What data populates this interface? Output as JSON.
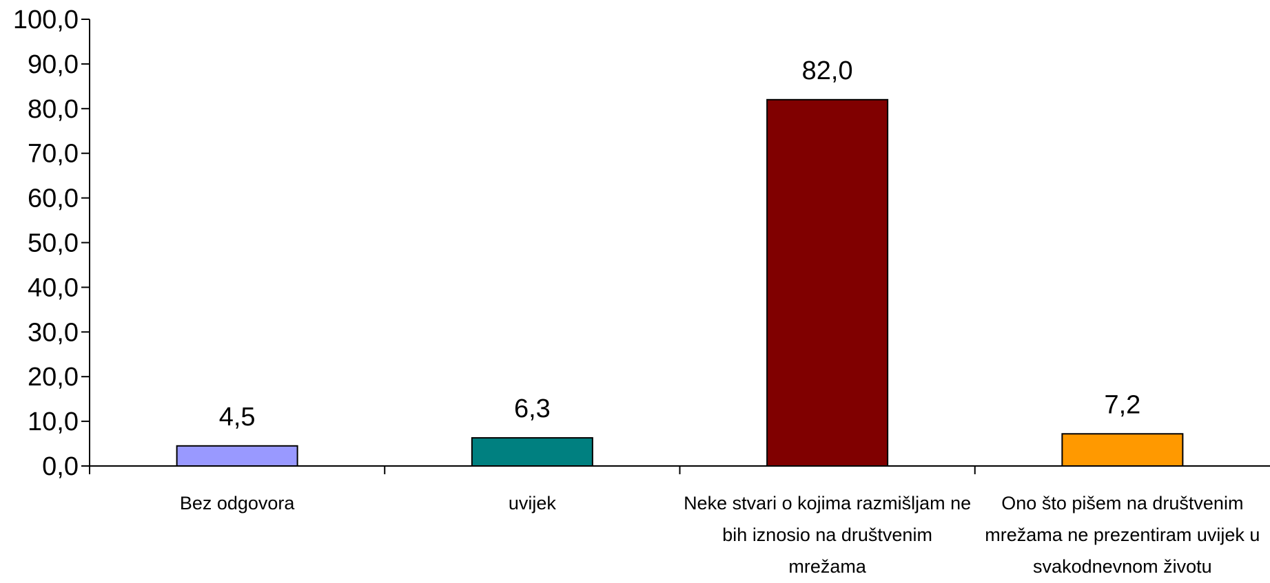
{
  "chart_data": {
    "type": "bar",
    "categories": [
      [
        "Bez odgovora"
      ],
      [
        "uvijek"
      ],
      [
        "Neke stvari o kojima razmišljam ne",
        "bih iznosio na društvenim",
        "mrežama"
      ],
      [
        "Ono što pišem na društvenim",
        "mrežama ne prezentiram uvijek u",
        "svakodnevnom životu"
      ]
    ],
    "values": [
      4.5,
      6.3,
      82.0,
      7.2
    ],
    "value_labels": [
      "4,5",
      "6,3",
      "82,0",
      "7,2"
    ],
    "colors": [
      "#9999FF",
      "#008080",
      "#800000",
      "#FF9900"
    ],
    "ylim": [
      0,
      100
    ],
    "yticks": [
      0,
      10,
      20,
      30,
      40,
      50,
      60,
      70,
      80,
      90,
      100
    ],
    "ytick_labels": [
      "0,0",
      "10,0",
      "20,0",
      "30,0",
      "40,0",
      "50,0",
      "60,0",
      "70,0",
      "80,0",
      "90,0",
      "100,0"
    ],
    "grid": false,
    "legend": "none"
  }
}
